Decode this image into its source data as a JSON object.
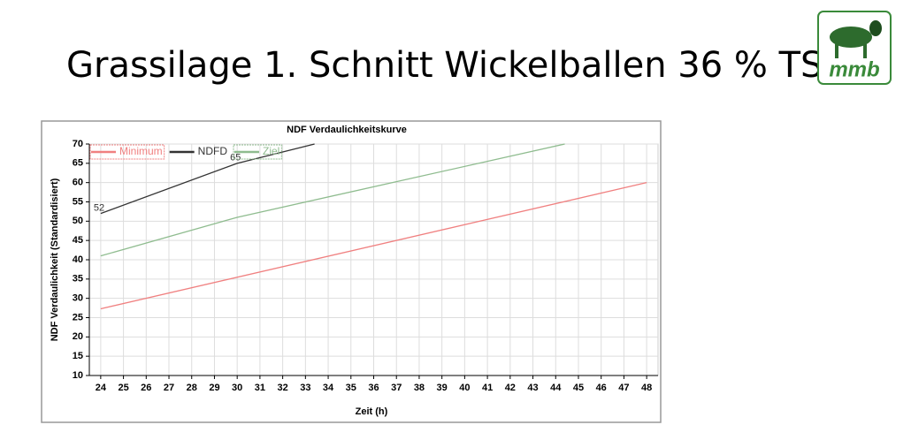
{
  "slide": {
    "title": "Grassilage 1. Schnitt Wickelballen 36 % TS",
    "logo": "mmb"
  },
  "chart_data": {
    "type": "line",
    "title": "NDF Verdaulichkeitskurve",
    "x_label": "Zeit (h)",
    "y_label": "NDF Verdaulichkeit (Standardisiert)",
    "xlim": [
      23.5,
      48.5
    ],
    "xticks": [
      24,
      25,
      26,
      27,
      28,
      29,
      30,
      31,
      32,
      33,
      34,
      35,
      36,
      37,
      38,
      39,
      40,
      41,
      42,
      43,
      44,
      45,
      46,
      47,
      48
    ],
    "ylim": [
      10,
      70
    ],
    "yticks": [
      10,
      15,
      20,
      25,
      30,
      35,
      40,
      45,
      50,
      55,
      60,
      65,
      70
    ],
    "grid": true,
    "legend": "top-left",
    "series": [
      {
        "name": "Minimum",
        "color": "#f08080",
        "x": [
          24,
          48
        ],
        "values": [
          27.3,
          60
        ]
      },
      {
        "name": "NDFD",
        "color": "#333333",
        "x": [
          24,
          30,
          33.4
        ],
        "values": [
          52,
          65,
          70
        ],
        "value_labels": [
          "52",
          "65",
          null
        ]
      },
      {
        "name": "Ziel",
        "color": "#8fbc8f",
        "x": [
          24,
          30,
          44.4
        ],
        "values": [
          41,
          51,
          70
        ]
      }
    ]
  }
}
